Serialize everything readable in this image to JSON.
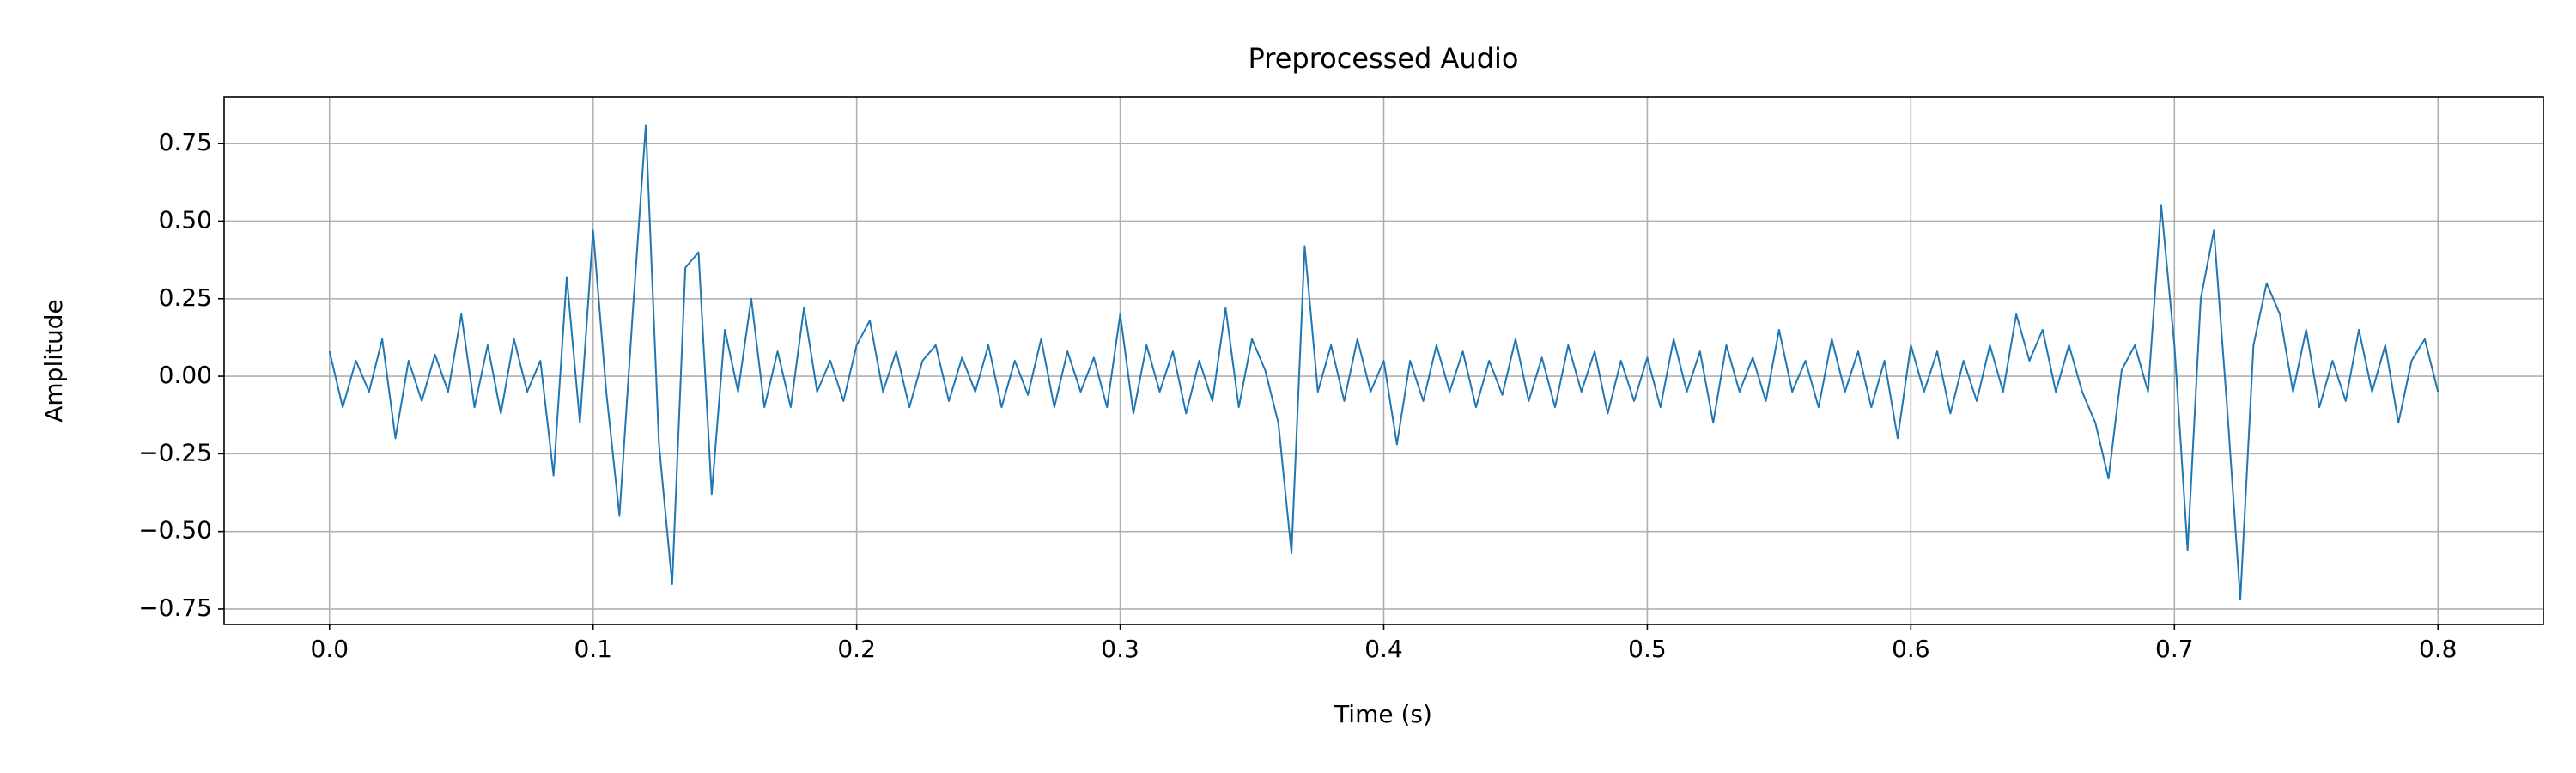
{
  "chart_data": {
    "type": "line",
    "title": "Preprocessed Audio",
    "xlabel": "Time (s)",
    "ylabel": "Amplitude",
    "x": [
      0,
      0.005,
      0.01,
      0.015,
      0.02,
      0.025,
      0.03,
      0.035,
      0.04,
      0.045,
      0.05,
      0.055,
      0.06,
      0.065,
      0.07,
      0.075,
      0.08,
      0.085,
      0.09,
      0.095,
      0.1,
      0.105,
      0.11,
      0.115,
      0.12,
      0.125,
      0.13,
      0.135,
      0.14,
      0.145,
      0.15,
      0.155,
      0.16,
      0.165,
      0.17,
      0.175,
      0.18,
      0.185,
      0.19,
      0.195,
      0.2,
      0.205,
      0.21,
      0.215,
      0.22,
      0.225,
      0.23,
      0.235,
      0.24,
      0.245,
      0.25,
      0.255,
      0.26,
      0.265,
      0.27,
      0.275,
      0.28,
      0.285,
      0.29,
      0.295,
      0.3,
      0.305,
      0.31,
      0.315,
      0.32,
      0.325,
      0.33,
      0.335,
      0.34,
      0.345,
      0.35,
      0.355,
      0.36,
      0.365,
      0.37,
      0.375,
      0.38,
      0.385,
      0.39,
      0.395,
      0.4,
      0.405,
      0.41,
      0.415,
      0.42,
      0.425,
      0.43,
      0.435,
      0.44,
      0.445,
      0.45,
      0.455,
      0.46,
      0.465,
      0.47,
      0.475,
      0.48,
      0.485,
      0.49,
      0.495,
      0.5,
      0.505,
      0.51,
      0.515,
      0.52,
      0.525,
      0.53,
      0.535,
      0.54,
      0.545,
      0.55,
      0.555,
      0.56,
      0.565,
      0.57,
      0.575,
      0.58,
      0.585,
      0.59,
      0.595,
      0.6,
      0.605,
      0.61,
      0.615,
      0.62,
      0.625,
      0.63,
      0.635,
      0.64,
      0.645,
      0.65,
      0.655,
      0.66,
      0.665,
      0.67,
      0.675,
      0.68,
      0.685,
      0.69,
      0.695,
      0.7,
      0.705,
      0.71,
      0.715,
      0.72,
      0.725,
      0.73,
      0.735,
      0.74,
      0.745,
      0.75,
      0.755,
      0.76,
      0.765,
      0.77,
      0.775,
      0.78,
      0.785,
      0.79,
      0.795,
      0.8
    ],
    "series": [
      {
        "color": "#1f77b4",
        "values": [
          0.08,
          -0.1,
          0.05,
          -0.05,
          0.12,
          -0.2,
          0.05,
          -0.08,
          0.07,
          -0.05,
          0.2,
          -0.1,
          0.1,
          -0.12,
          0.12,
          -0.05,
          0.05,
          -0.32,
          0.32,
          -0.15,
          0.47,
          -0.05,
          -0.45,
          0.2,
          0.81,
          -0.22,
          -0.67,
          0.35,
          0.4,
          -0.38,
          0.15,
          -0.05,
          0.25,
          -0.1,
          0.08,
          -0.1,
          0.22,
          -0.05,
          0.05,
          -0.08,
          0.1,
          0.18,
          -0.05,
          0.08,
          -0.1,
          0.05,
          0.1,
          -0.08,
          0.06,
          -0.05,
          0.1,
          -0.1,
          0.05,
          -0.06,
          0.12,
          -0.1,
          0.08,
          -0.05,
          0.06,
          -0.1,
          0.2,
          -0.12,
          0.1,
          -0.05,
          0.08,
          -0.12,
          0.05,
          -0.08,
          0.22,
          -0.1,
          0.12,
          0.02,
          -0.15,
          -0.57,
          0.42,
          -0.05,
          0.1,
          -0.08,
          0.12,
          -0.05,
          0.05,
          -0.22,
          0.05,
          -0.08,
          0.1,
          -0.05,
          0.08,
          -0.1,
          0.05,
          -0.06,
          0.12,
          -0.08,
          0.06,
          -0.1,
          0.1,
          -0.05,
          0.08,
          -0.12,
          0.05,
          -0.08,
          0.06,
          -0.1,
          0.12,
          -0.05,
          0.08,
          -0.15,
          0.1,
          -0.05,
          0.06,
          -0.08,
          0.15,
          -0.05,
          0.05,
          -0.1,
          0.12,
          -0.05,
          0.08,
          -0.1,
          0.05,
          -0.2,
          0.1,
          -0.05,
          0.08,
          -0.12,
          0.05,
          -0.08,
          0.1,
          -0.05,
          0.2,
          0.05,
          0.15,
          -0.05,
          0.1,
          -0.05,
          -0.15,
          -0.33,
          0.02,
          0.1,
          -0.05,
          0.55,
          0.1,
          -0.56,
          0.25,
          0.47,
          -0.1,
          -0.72,
          0.1,
          0.3,
          0.2,
          -0.05,
          0.15,
          -0.1,
          0.05,
          -0.08,
          0.15,
          -0.05,
          0.1,
          -0.15,
          0.05,
          0.12,
          -0.05
        ]
      }
    ],
    "xlim": [
      -0.04,
      0.84
    ],
    "ylim": [
      -0.8,
      0.9
    ],
    "xticks": [
      {
        "value": 0,
        "label": "0.0"
      },
      0.1,
      0.2,
      0.3,
      0.4,
      0.5,
      0.6,
      0.7,
      0.8
    ],
    "yticks": [
      {
        "value": -0.75,
        "label": "−0.75"
      },
      {
        "value": -0.5,
        "label": "−0.50"
      },
      {
        "value": -0.25,
        "label": "−0.25"
      },
      {
        "value": 0,
        "label": "0.00"
      },
      0.25,
      {
        "value": 0.5,
        "label": "0.50"
      },
      0.75
    ],
    "grid": true
  }
}
